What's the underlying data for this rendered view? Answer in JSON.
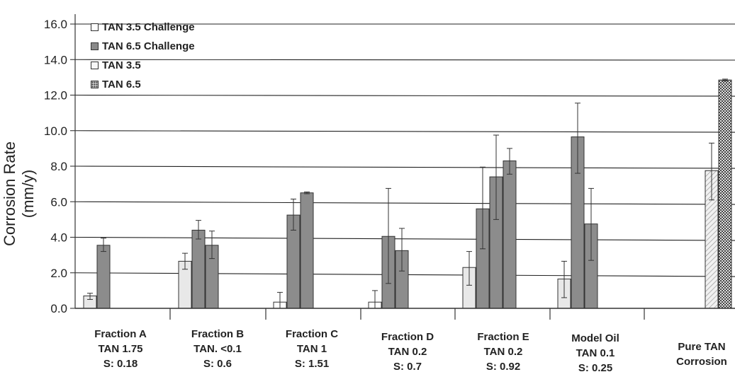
{
  "chart_data": {
    "type": "bar",
    "ylabel": "Corrosion Rate (mm/y)",
    "ylim": [
      0,
      16.0
    ],
    "yticks": [
      "0.0",
      "2.0",
      "4.0",
      "6.0",
      "8.0",
      "10.0",
      "12.0",
      "14.0",
      "16.0"
    ],
    "grid": true,
    "legend_position": "top-left",
    "legend": [
      {
        "name": "TAN 3.5 Challenge",
        "swatch": "sw-challenge35"
      },
      {
        "name": "TAN 6.5 Challenge",
        "swatch": "sw-challenge65"
      },
      {
        "name": "TAN 3.5",
        "swatch": "sw-tan35"
      },
      {
        "name": "TAN 6.5",
        "swatch": "sw-tan65"
      }
    ],
    "colors": {
      "light": "#e8e8e8",
      "dark": "#8c8c8c",
      "white": "#ffffff"
    },
    "groups": [
      {
        "label": [
          "Fraction A",
          "TAN 1.75",
          "S: 0.18"
        ],
        "bars": [
          {
            "style": "light",
            "value": 0.7,
            "err": [
              0.5,
              0.85
            ]
          },
          {
            "style": "dark",
            "value": 3.55,
            "err": [
              3.2,
              3.95
            ]
          }
        ]
      },
      {
        "label": [
          "Fraction B",
          "TAN. <0.1",
          "S: 0.6"
        ],
        "bars": [
          {
            "style": "light",
            "value": 2.65,
            "err": [
              2.2,
              3.1
            ]
          },
          {
            "style": "dark",
            "value": 4.4,
            "err": [
              3.9,
              4.95
            ]
          },
          {
            "style": "dark",
            "value": 3.55,
            "err": [
              2.8,
              4.35
            ]
          }
        ]
      },
      {
        "label": [
          "Fraction C",
          "TAN 1",
          "S: 1.51"
        ],
        "bars": [
          {
            "style": "white",
            "value": 0.35,
            "err": [
              0.0,
              0.9
            ]
          },
          {
            "style": "dark",
            "value": 5.25,
            "err": [
              4.4,
              6.15
            ]
          },
          {
            "style": "dark",
            "value": 6.5,
            "err": [
              6.45,
              6.55
            ]
          }
        ]
      },
      {
        "label": [
          "Fraction D",
          "TAN 0.2",
          "S: 0.7"
        ],
        "bars": [
          {
            "style": "white",
            "value": 0.35,
            "err": [
              0.0,
              1.0
            ]
          },
          {
            "style": "dark",
            "value": 4.05,
            "err": [
              1.4,
              6.75
            ]
          },
          {
            "style": "dark",
            "value": 3.25,
            "err": [
              2.1,
              4.5
            ]
          }
        ]
      },
      {
        "label": [
          "Fraction E",
          "TAN 0.2",
          "S: 0.92"
        ],
        "bars": [
          {
            "style": "light",
            "value": 2.3,
            "err": [
              1.3,
              3.2
            ]
          },
          {
            "style": "dark",
            "value": 5.6,
            "err": [
              3.35,
              7.95
            ]
          },
          {
            "style": "dark",
            "value": 7.4,
            "err": [
              5.0,
              9.75
            ]
          },
          {
            "style": "dark",
            "value": 8.3,
            "err": [
              7.55,
              9.0
            ]
          }
        ]
      },
      {
        "label": [
          "Model Oil",
          "TAN 0.1",
          "S: 0.25"
        ],
        "bars": [
          {
            "style": "light",
            "value": 1.65,
            "err": [
              0.6,
              2.65
            ]
          },
          {
            "style": "dark",
            "value": 9.65,
            "err": [
              7.6,
              11.55
            ]
          },
          {
            "style": "dark",
            "value": 4.75,
            "err": [
              2.7,
              6.75
            ]
          }
        ]
      },
      {
        "label": [
          "Pure TAN",
          "Corrosion"
        ],
        "bars": [
          {
            "style": "hatch",
            "value": 7.75,
            "err": [
              6.1,
              9.3
            ]
          },
          {
            "style": "check",
            "value": 12.85,
            "err": [
              12.8,
              12.9
            ]
          }
        ]
      }
    ]
  }
}
